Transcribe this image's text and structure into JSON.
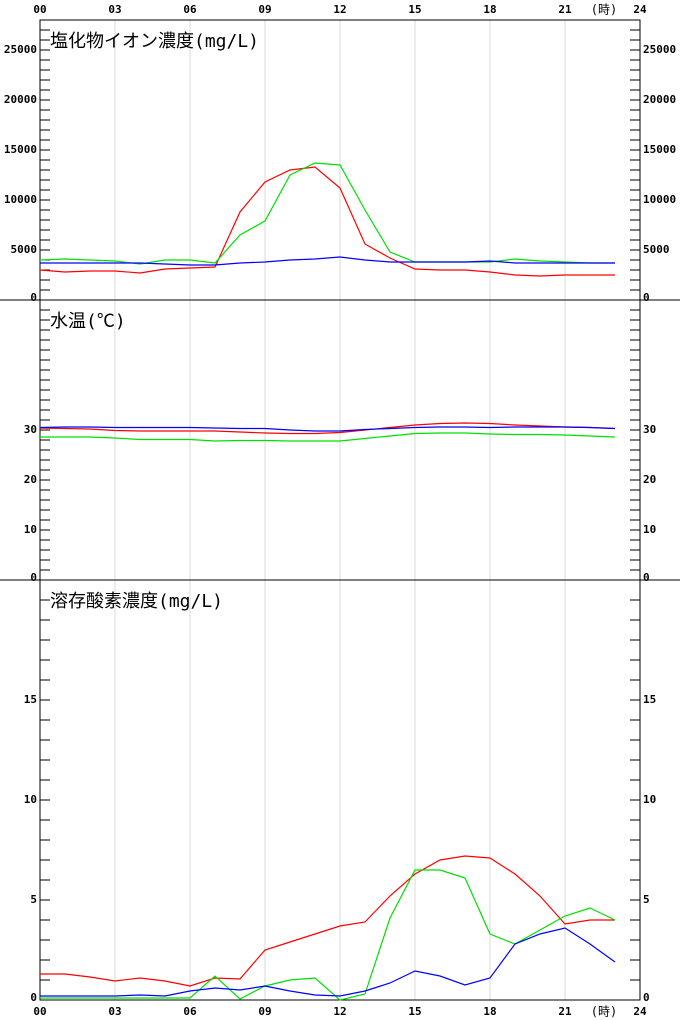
{
  "chart_data": [
    {
      "type": "line",
      "title": "塩化物イオン濃度(mg/L)",
      "x": [
        0,
        1,
        2,
        3,
        4,
        5,
        6,
        7,
        8,
        9,
        10,
        11,
        12,
        13,
        14,
        15,
        16,
        17,
        18,
        19,
        20,
        21,
        22,
        23
      ],
      "xlim": [
        0,
        24
      ],
      "xticks": [
        {
          "value": 0,
          "label": "00"
        },
        {
          "value": 3,
          "label": "03"
        },
        {
          "value": 6,
          "label": "06"
        },
        {
          "value": 9,
          "label": "09"
        },
        {
          "value": 12,
          "label": "12"
        },
        {
          "value": 15,
          "label": "15"
        },
        {
          "value": 18,
          "label": "18"
        },
        {
          "value": 21,
          "label": "21"
        },
        {
          "value": 24,
          "label": "24"
        }
      ],
      "x_unit_label": "(時)",
      "ylim": [
        0,
        28000
      ],
      "yticks": [
        0,
        5000,
        10000,
        15000,
        20000,
        25000
      ],
      "minor_step": 1000,
      "grid": true,
      "series": [
        {
          "color": "#ff0000",
          "values": [
            3000,
            2800,
            2900,
            2900,
            2700,
            3100,
            3200,
            3300,
            8800,
            11800,
            13000,
            13300,
            11200,
            5600,
            4200,
            3100,
            3000,
            3000,
            2800,
            2500,
            2400,
            2500,
            2500,
            2500
          ]
        },
        {
          "color": "#00e000",
          "values": [
            4000,
            4100,
            4000,
            3900,
            3600,
            4000,
            4000,
            3700,
            6500,
            7900,
            12500,
            13700,
            13500,
            9000,
            4800,
            3800,
            3800,
            3800,
            3800,
            4100,
            3900,
            3800,
            3700,
            3700
          ]
        },
        {
          "color": "#0000ff",
          "values": [
            3700,
            3700,
            3700,
            3700,
            3700,
            3600,
            3500,
            3500,
            3700,
            3800,
            4000,
            4100,
            4300,
            4000,
            3800,
            3800,
            3800,
            3800,
            3900,
            3700,
            3700,
            3700,
            3700,
            3700
          ]
        }
      ]
    },
    {
      "type": "line",
      "title": "水温(℃)",
      "x": [
        0,
        1,
        2,
        3,
        4,
        5,
        6,
        7,
        8,
        9,
        10,
        11,
        12,
        13,
        14,
        15,
        16,
        17,
        18,
        19,
        20,
        21,
        22,
        23
      ],
      "xlim": [
        0,
        24
      ],
      "xticks": [
        3,
        6,
        9,
        12,
        15,
        18,
        21
      ],
      "ylim": [
        0,
        56
      ],
      "yticks": [
        0,
        10,
        20,
        30
      ],
      "minor_step": 2,
      "grid": true,
      "series": [
        {
          "color": "#ff0000",
          "values": [
            30.4,
            30.3,
            30.2,
            29.9,
            29.8,
            29.8,
            29.8,
            29.8,
            29.6,
            29.4,
            29.3,
            29.3,
            29.5,
            30.0,
            30.5,
            31.0,
            31.3,
            31.4,
            31.3,
            31.0,
            30.8,
            30.6,
            30.5,
            30.3
          ]
        },
        {
          "color": "#00e000",
          "values": [
            28.6,
            28.6,
            28.6,
            28.4,
            28.1,
            28.1,
            28.1,
            27.8,
            27.9,
            27.9,
            27.8,
            27.8,
            27.8,
            28.3,
            28.8,
            29.3,
            29.4,
            29.4,
            29.2,
            29.1,
            29.1,
            29.0,
            28.8,
            28.6
          ]
        },
        {
          "color": "#0000ff",
          "values": [
            30.5,
            30.6,
            30.6,
            30.5,
            30.5,
            30.5,
            30.5,
            30.4,
            30.3,
            30.3,
            30.0,
            29.8,
            29.8,
            30.1,
            30.3,
            30.5,
            30.6,
            30.6,
            30.5,
            30.6,
            30.6,
            30.6,
            30.5,
            30.3
          ]
        }
      ]
    },
    {
      "type": "line",
      "title": "溶存酸素濃度(mg/L)",
      "x": [
        0,
        1,
        2,
        3,
        4,
        5,
        6,
        7,
        8,
        9,
        10,
        11,
        12,
        13,
        14,
        15,
        16,
        17,
        18,
        19,
        20,
        21,
        22,
        23
      ],
      "xlim": [
        0,
        24
      ],
      "xticks": [
        {
          "value": 0,
          "label": "00"
        },
        {
          "value": 3,
          "label": "03"
        },
        {
          "value": 6,
          "label": "06"
        },
        {
          "value": 9,
          "label": "09"
        },
        {
          "value": 12,
          "label": "12"
        },
        {
          "value": 15,
          "label": "15"
        },
        {
          "value": 18,
          "label": "18"
        },
        {
          "value": 21,
          "label": "21"
        },
        {
          "value": 24,
          "label": "24"
        }
      ],
      "x_unit_label": "(時)",
      "ylim": [
        0,
        21
      ],
      "yticks": [
        0,
        5,
        10,
        15
      ],
      "minor_step": 1,
      "grid": true,
      "series": [
        {
          "color": "#ff0000",
          "values": [
            1.3,
            1.3,
            1.15,
            0.95,
            1.1,
            0.95,
            0.7,
            1.1,
            1.05,
            2.5,
            2.9,
            3.3,
            3.7,
            3.9,
            5.2,
            6.3,
            7.0,
            7.2,
            7.1,
            6.3,
            5.2,
            3.8,
            4.0,
            4.0
          ]
        },
        {
          "color": "#00e000",
          "values": [
            0.1,
            0.1,
            0.1,
            0.1,
            0.1,
            0.1,
            0.1,
            1.2,
            0.05,
            0.7,
            1.0,
            1.1,
            0,
            0.3,
            4.1,
            6.5,
            6.5,
            6.1,
            3.3,
            2.8,
            3.5,
            4.2,
            4.6,
            4.0
          ]
        },
        {
          "color": "#0000ff",
          "values": [
            0.2,
            0.2,
            0.2,
            0.2,
            0.25,
            0.2,
            0.45,
            0.6,
            0.5,
            0.7,
            0.45,
            0.25,
            0.2,
            0.45,
            0.85,
            1.45,
            1.2,
            0.75,
            1.1,
            2.8,
            3.3,
            3.6,
            2.8,
            1.9
          ]
        }
      ]
    }
  ]
}
